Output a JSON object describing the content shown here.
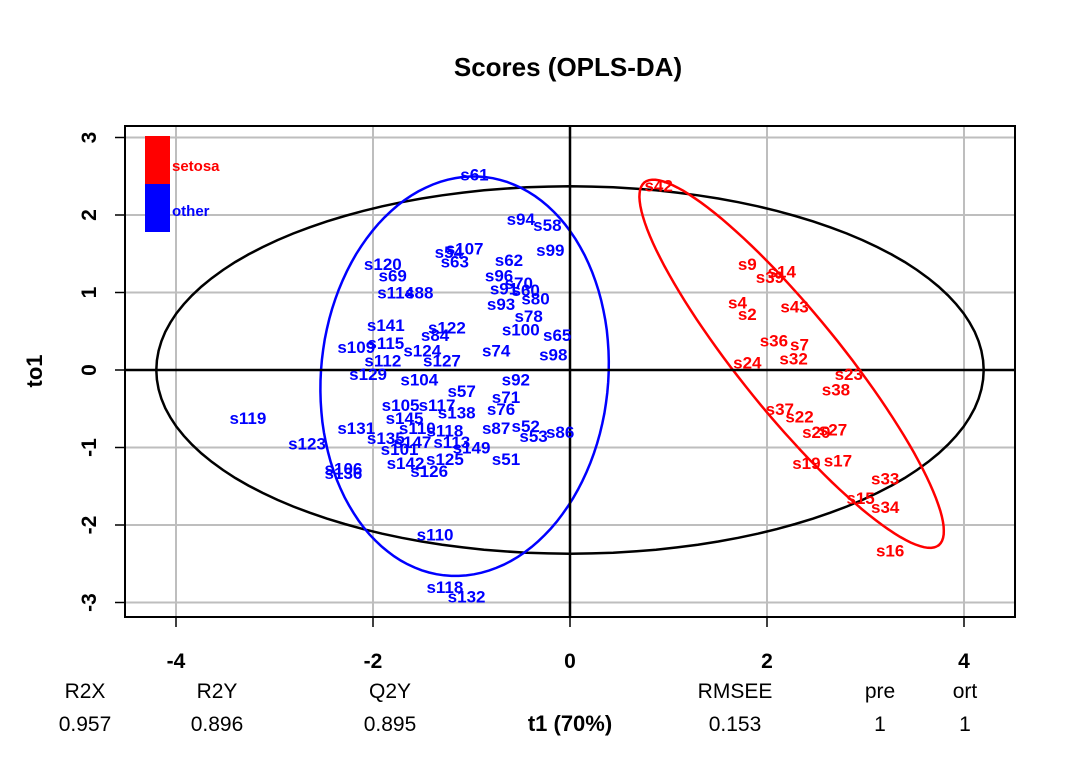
{
  "chart_data": {
    "type": "scatter",
    "title": "Scores (OPLS-DA)",
    "xlabel": "t1 (70%)",
    "ylabel": "to1",
    "xlim": [
      -4.5,
      4.5
    ],
    "ylim": [
      -3.2,
      3.2
    ],
    "xticks": [
      -4,
      -2,
      0,
      2,
      4
    ],
    "yticks": [
      -3,
      -2,
      -1,
      0,
      1,
      2,
      3
    ],
    "xtick_labels": [
      "-4",
      "-2",
      "0",
      "2",
      "4"
    ],
    "ytick_labels": [
      "-3",
      "-2",
      "-1",
      "0",
      "1",
      "2",
      "3"
    ],
    "grid": true,
    "legend": {
      "placement": "top-left",
      "entries": [
        {
          "label": "setosa",
          "color": "#ff0000"
        },
        {
          "label": "other",
          "color": "#0000ff"
        }
      ]
    },
    "series": [
      {
        "name": "setosa",
        "color": "#ff0000",
        "points": [
          {
            "label": "s42",
            "x": 0.9,
            "y": 2.38
          },
          {
            "label": "s9",
            "x": 1.8,
            "y": 1.37
          },
          {
            "label": "s14",
            "x": 2.15,
            "y": 1.27
          },
          {
            "label": "s39",
            "x": 2.03,
            "y": 1.2
          },
          {
            "label": "s4",
            "x": 1.7,
            "y": 0.87
          },
          {
            "label": "s43",
            "x": 2.28,
            "y": 0.82
          },
          {
            "label": "s2",
            "x": 1.8,
            "y": 0.72
          },
          {
            "label": "s36",
            "x": 2.07,
            "y": 0.38
          },
          {
            "label": "s7",
            "x": 2.33,
            "y": 0.33
          },
          {
            "label": "s24",
            "x": 1.8,
            "y": 0.1
          },
          {
            "label": "s32",
            "x": 2.27,
            "y": 0.15
          },
          {
            "label": "s23",
            "x": 2.83,
            "y": -0.05
          },
          {
            "label": "s38",
            "x": 2.7,
            "y": -0.25
          },
          {
            "label": "s37",
            "x": 2.13,
            "y": -0.5
          },
          {
            "label": "s22",
            "x": 2.33,
            "y": -0.6
          },
          {
            "label": "s27",
            "x": 2.67,
            "y": -0.77
          },
          {
            "label": "s20",
            "x": 2.5,
            "y": -0.8
          },
          {
            "label": "s19",
            "x": 2.4,
            "y": -1.2
          },
          {
            "label": "s17",
            "x": 2.72,
            "y": -1.17
          },
          {
            "label": "s33",
            "x": 3.2,
            "y": -1.4
          },
          {
            "label": "s15",
            "x": 2.95,
            "y": -1.65
          },
          {
            "label": "s34",
            "x": 3.2,
            "y": -1.77
          },
          {
            "label": "s16",
            "x": 3.25,
            "y": -2.33
          }
        ]
      },
      {
        "name": "other",
        "color": "#0000ff",
        "points": [
          {
            "label": "s61",
            "x": -0.97,
            "y": 2.52
          },
          {
            "label": "s94",
            "x": -0.5,
            "y": 1.95
          },
          {
            "label": "s58",
            "x": -0.23,
            "y": 1.87
          },
          {
            "label": "s107",
            "x": -1.07,
            "y": 1.57
          },
          {
            "label": "s54",
            "x": -1.23,
            "y": 1.52
          },
          {
            "label": "s99",
            "x": -0.2,
            "y": 1.55
          },
          {
            "label": "s62",
            "x": -0.62,
            "y": 1.42
          },
          {
            "label": "s63",
            "x": -1.17,
            "y": 1.4
          },
          {
            "label": "s120",
            "x": -1.9,
            "y": 1.37
          },
          {
            "label": "s69",
            "x": -1.8,
            "y": 1.22
          },
          {
            "label": "s96",
            "x": -0.72,
            "y": 1.22
          },
          {
            "label": "s70",
            "x": -0.52,
            "y": 1.12
          },
          {
            "label": "s91",
            "x": -0.67,
            "y": 1.05
          },
          {
            "label": "s60",
            "x": -0.45,
            "y": 1.03
          },
          {
            "label": "s114",
            "x": -1.77,
            "y": 1.0
          },
          {
            "label": "s88",
            "x": -1.53,
            "y": 1.0
          },
          {
            "label": "s80",
            "x": -0.35,
            "y": 0.92
          },
          {
            "label": "s93",
            "x": -0.7,
            "y": 0.85
          },
          {
            "label": "s78",
            "x": -0.42,
            "y": 0.7
          },
          {
            "label": "s141",
            "x": -1.87,
            "y": 0.58
          },
          {
            "label": "s122",
            "x": -1.25,
            "y": 0.55
          },
          {
            "label": "s84",
            "x": -1.37,
            "y": 0.45
          },
          {
            "label": "s100",
            "x": -0.5,
            "y": 0.52
          },
          {
            "label": "s65",
            "x": -0.13,
            "y": 0.45
          },
          {
            "label": "s109",
            "x": -2.17,
            "y": 0.3
          },
          {
            "label": "s115",
            "x": -1.87,
            "y": 0.35
          },
          {
            "label": "s124",
            "x": -1.5,
            "y": 0.25
          },
          {
            "label": "s74",
            "x": -0.75,
            "y": 0.25
          },
          {
            "label": "s98",
            "x": -0.17,
            "y": 0.2
          },
          {
            "label": "s112",
            "x": -1.9,
            "y": 0.12
          },
          {
            "label": "s127",
            "x": -1.3,
            "y": 0.12
          },
          {
            "label": "s129",
            "x": -2.05,
            "y": -0.05
          },
          {
            "label": "s104",
            "x": -1.53,
            "y": -0.12
          },
          {
            "label": "s92",
            "x": -0.55,
            "y": -0.12
          },
          {
            "label": "s57",
            "x": -1.1,
            "y": -0.27
          },
          {
            "label": "s71",
            "x": -0.65,
            "y": -0.35
          },
          {
            "label": "s105",
            "x": -1.72,
            "y": -0.45
          },
          {
            "label": "s117",
            "x": -1.35,
            "y": -0.45
          },
          {
            "label": "s119",
            "x": -3.27,
            "y": -0.62
          },
          {
            "label": "s138",
            "x": -1.15,
            "y": -0.55
          },
          {
            "label": "s76",
            "x": -0.7,
            "y": -0.5
          },
          {
            "label": "s145",
            "x": -1.68,
            "y": -0.62
          },
          {
            "label": "s131",
            "x": -2.17,
            "y": -0.75
          },
          {
            "label": "s110",
            "x": -1.55,
            "y": -0.75
          },
          {
            "label": "s118",
            "x": -1.27,
            "y": -0.78
          },
          {
            "label": "s87",
            "x": -0.75,
            "y": -0.75
          },
          {
            "label": "s52",
            "x": -0.45,
            "y": -0.72
          },
          {
            "label": "s86",
            "x": -0.1,
            "y": -0.8
          },
          {
            "label": "s135",
            "x": -1.87,
            "y": -0.88
          },
          {
            "label": "s147",
            "x": -1.6,
            "y": -0.93
          },
          {
            "label": "s53",
            "x": -0.37,
            "y": -0.85
          },
          {
            "label": "s123",
            "x": -2.67,
            "y": -0.95
          },
          {
            "label": "s101",
            "x": -1.73,
            "y": -1.02
          },
          {
            "label": "s113",
            "x": -1.2,
            "y": -0.93
          },
          {
            "label": "s149",
            "x": -1.0,
            "y": -1.0
          },
          {
            "label": "s125",
            "x": -1.27,
            "y": -1.15
          },
          {
            "label": "s51",
            "x": -0.65,
            "y": -1.15
          },
          {
            "label": "s106",
            "x": -2.3,
            "y": -1.27
          },
          {
            "label": "s136",
            "x": -2.3,
            "y": -1.33
          },
          {
            "label": "s142",
            "x": -1.67,
            "y": -1.2
          },
          {
            "label": "s126",
            "x": -1.43,
            "y": -1.3
          },
          {
            "label": "s110",
            "x": -1.37,
            "y": -2.12
          },
          {
            "label": "s118",
            "x": -1.27,
            "y": -2.8
          },
          {
            "label": "s132",
            "x": -1.05,
            "y": -2.92
          }
        ]
      }
    ],
    "ellipses": [
      {
        "name": "overall",
        "color": "#000000",
        "cx": 0.0,
        "cy": 0.0,
        "rx": 4.2,
        "ry": 2.37,
        "angle_deg": 0
      },
      {
        "name": "other",
        "color": "#0000ff",
        "cx": -1.07,
        "cy": -0.08,
        "rx": 2.58,
        "ry": 1.46,
        "angle_deg": 87
      },
      {
        "name": "setosa",
        "color": "#ff0000",
        "cx": 2.25,
        "cy": 0.08,
        "rx": 2.78,
        "ry": 0.55,
        "angle_deg": -58
      }
    ],
    "metrics": {
      "headers": [
        "R2X",
        "R2Y",
        "Q2Y",
        "RMSEE",
        "pre",
        "ort"
      ],
      "values": [
        "0.957",
        "0.896",
        "0.895",
        "0.153",
        "1",
        "1"
      ]
    }
  }
}
